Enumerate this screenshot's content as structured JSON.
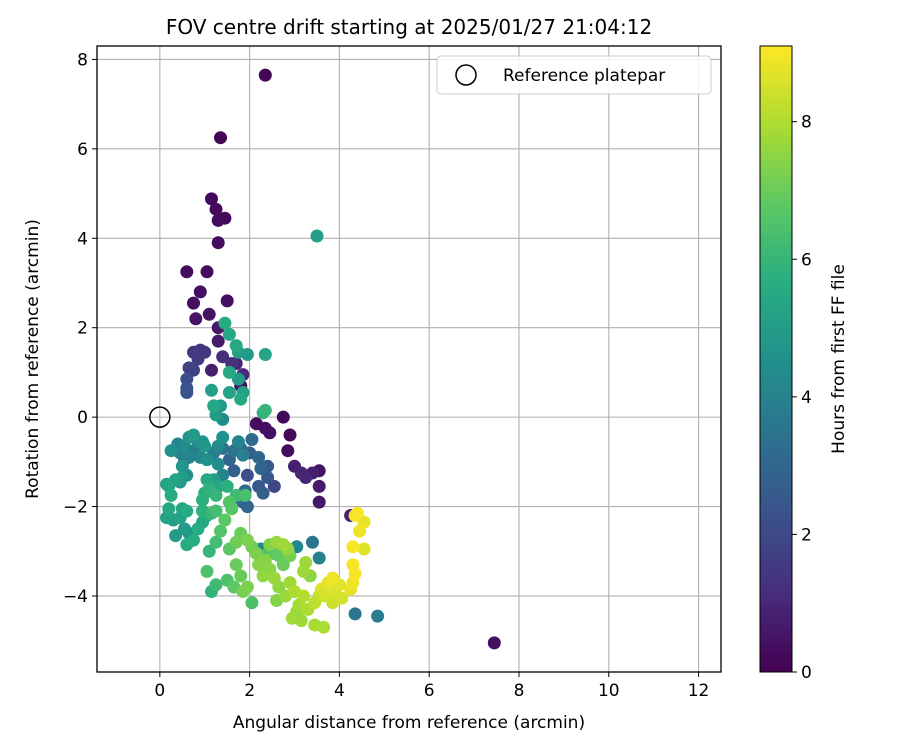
{
  "chart_data": {
    "type": "scatter",
    "title": "FOV centre drift starting at 2025/01/27 21:04:12",
    "xlabel": "Angular distance from reference (arcmin)",
    "ylabel": "Rotation from reference (arcmin)",
    "xlim": [
      -1.4,
      12.5
    ],
    "ylim": [
      -5.7,
      8.3
    ],
    "xticks": [
      0,
      2,
      4,
      6,
      8,
      10,
      12
    ],
    "yticks": [
      -4,
      -2,
      0,
      2,
      4,
      6,
      8
    ],
    "grid": true,
    "legend": {
      "position": "top-right",
      "entries": [
        "Reference platepar"
      ]
    },
    "reference_point": {
      "x": 0,
      "y": 0
    },
    "colorbar": {
      "label": "Hours from first FF file",
      "range": [
        0,
        9.1
      ],
      "ticks": [
        0,
        2,
        4,
        6,
        8
      ],
      "colormap": "viridis"
    },
    "points_columns": [
      "x",
      "y",
      "hours"
    ],
    "points": [
      [
        2.35,
        7.65,
        0.1
      ],
      [
        1.35,
        6.25,
        0.1
      ],
      [
        1.15,
        4.88,
        0.2
      ],
      [
        1.25,
        4.65,
        0.2
      ],
      [
        1.45,
        4.45,
        0.2
      ],
      [
        1.3,
        4.4,
        0.3
      ],
      [
        1.3,
        3.9,
        0.3
      ],
      [
        0.6,
        3.25,
        0.3
      ],
      [
        1.05,
        3.25,
        0.3
      ],
      [
        0.9,
        2.8,
        0.4
      ],
      [
        0.75,
        2.55,
        0.4
      ],
      [
        1.5,
        2.6,
        0.4
      ],
      [
        1.1,
        2.3,
        0.5
      ],
      [
        0.8,
        2.2,
        0.5
      ],
      [
        1.3,
        2.0,
        0.6
      ],
      [
        1.3,
        1.7,
        0.7
      ],
      [
        0.75,
        1.45,
        1.4
      ],
      [
        0.9,
        1.5,
        1.5
      ],
      [
        1.0,
        1.45,
        1.5
      ],
      [
        0.85,
        1.3,
        1.6
      ],
      [
        0.65,
        1.1,
        1.8
      ],
      [
        0.75,
        1.05,
        1.8
      ],
      [
        0.6,
        0.85,
        2.2
      ],
      [
        0.6,
        0.65,
        2.3
      ],
      [
        0.6,
        0.55,
        2.4
      ],
      [
        1.15,
        1.05,
        0.8
      ],
      [
        1.4,
        1.35,
        1.2
      ],
      [
        1.6,
        1.2,
        1.3
      ],
      [
        1.8,
        0.7,
        0.4
      ],
      [
        1.7,
        1.2,
        1.0
      ],
      [
        1.85,
        0.95,
        1.1
      ],
      [
        1.75,
        1.45,
        5.1
      ],
      [
        2.35,
        1.4,
        5.3
      ],
      [
        1.95,
        1.4,
        5.0
      ],
      [
        1.55,
        1.85,
        5.4
      ],
      [
        1.45,
        2.1,
        5.6
      ],
      [
        1.7,
        1.6,
        5.5
      ],
      [
        1.55,
        1.0,
        5.5
      ],
      [
        1.75,
        0.85,
        5.0
      ],
      [
        1.55,
        0.55,
        5.3
      ],
      [
        1.8,
        0.4,
        5.5
      ],
      [
        1.85,
        0.55,
        5.2
      ],
      [
        1.15,
        0.6,
        5.2
      ],
      [
        1.2,
        0.25,
        5.4
      ],
      [
        1.35,
        0.25,
        5.0
      ],
      [
        1.25,
        0.05,
        5.0
      ],
      [
        1.4,
        -0.05,
        4.4
      ],
      [
        3.5,
        4.05,
        5.1
      ],
      [
        2.35,
        0.15,
        6.0
      ],
      [
        2.3,
        0.1,
        5.8
      ],
      [
        2.15,
        -0.15,
        0.3
      ],
      [
        2.35,
        -0.25,
        0.4
      ],
      [
        2.45,
        -0.35,
        0.4
      ],
      [
        2.75,
        0.0,
        0.2
      ],
      [
        2.9,
        -0.4,
        0.2
      ],
      [
        2.85,
        -0.75,
        0.3
      ],
      [
        2.05,
        -0.5,
        3.2
      ],
      [
        3.0,
        -1.1,
        0.8
      ],
      [
        3.15,
        -1.25,
        1.0
      ],
      [
        3.25,
        -1.35,
        1.0
      ],
      [
        3.4,
        -1.25,
        0.8
      ],
      [
        3.55,
        -1.2,
        0.5
      ],
      [
        3.55,
        -1.55,
        0.7
      ],
      [
        3.55,
        -1.9,
        0.6
      ],
      [
        4.25,
        -2.2,
        0.9
      ],
      [
        2.0,
        -0.8,
        2.8
      ],
      [
        2.2,
        -0.9,
        3.0
      ],
      [
        2.25,
        -1.15,
        3.0
      ],
      [
        2.4,
        -1.1,
        2.6
      ],
      [
        2.4,
        -1.35,
        2.5
      ],
      [
        2.3,
        -1.7,
        2.8
      ],
      [
        2.55,
        -1.55,
        1.9
      ],
      [
        2.2,
        -1.55,
        2.6
      ],
      [
        1.95,
        -1.3,
        2.2
      ],
      [
        1.9,
        -1.65,
        3.2
      ],
      [
        1.85,
        -1.9,
        3.0
      ],
      [
        1.95,
        -2.0,
        3.0
      ],
      [
        1.75,
        -1.8,
        3.5
      ],
      [
        1.65,
        -1.2,
        2.8
      ],
      [
        1.55,
        -0.95,
        3.0
      ],
      [
        1.65,
        -0.75,
        3.5
      ],
      [
        1.8,
        -0.7,
        3.2
      ],
      [
        1.4,
        -0.7,
        3.4
      ],
      [
        1.2,
        -0.8,
        3.8
      ],
      [
        1.3,
        -1.05,
        4.4
      ],
      [
        1.4,
        -1.3,
        4.2
      ],
      [
        1.05,
        -0.95,
        4.6
      ],
      [
        0.9,
        -0.9,
        4.2
      ],
      [
        0.85,
        -0.55,
        4.5
      ],
      [
        0.95,
        -0.55,
        4.6
      ],
      [
        1.0,
        -0.65,
        4.8
      ],
      [
        0.75,
        -0.75,
        3.8
      ],
      [
        0.65,
        -0.9,
        4.1
      ],
      [
        0.55,
        -0.95,
        3.9
      ],
      [
        0.45,
        -0.8,
        4.0
      ],
      [
        0.55,
        -0.65,
        4.4
      ],
      [
        0.4,
        -0.6,
        4.1
      ],
      [
        0.25,
        -0.75,
        4.6
      ],
      [
        0.65,
        -0.45,
        4.7
      ],
      [
        0.75,
        -0.4,
        5.0
      ],
      [
        0.5,
        -1.1,
        4.8
      ],
      [
        0.6,
        -1.3,
        4.6
      ],
      [
        0.5,
        -1.35,
        5.0
      ],
      [
        0.45,
        -1.45,
        4.8
      ],
      [
        0.35,
        -1.4,
        5.2
      ],
      [
        0.2,
        -1.55,
        5.4
      ],
      [
        0.15,
        -1.5,
        5.2
      ],
      [
        0.25,
        -1.75,
        5.6
      ],
      [
        0.2,
        -2.05,
        5.5
      ],
      [
        0.15,
        -2.25,
        5.3
      ],
      [
        0.3,
        -2.3,
        5.0
      ],
      [
        0.45,
        -2.25,
        5.2
      ],
      [
        0.5,
        -2.05,
        5.4
      ],
      [
        0.6,
        -2.1,
        5.6
      ],
      [
        0.55,
        -2.5,
        5.0
      ],
      [
        0.65,
        -2.6,
        4.8
      ],
      [
        0.35,
        -2.65,
        5.0
      ],
      [
        0.6,
        -2.85,
        5.6
      ],
      [
        0.75,
        -2.75,
        5.7
      ],
      [
        0.85,
        -2.5,
        5.6
      ],
      [
        0.95,
        -2.35,
        5.5
      ],
      [
        1.05,
        -2.2,
        5.6
      ],
      [
        0.95,
        -2.1,
        5.8
      ],
      [
        1.15,
        -2.15,
        6.1
      ],
      [
        1.25,
        -2.1,
        6.3
      ],
      [
        0.95,
        -1.85,
        5.8
      ],
      [
        1.0,
        -1.7,
        5.7
      ],
      [
        1.1,
        -1.6,
        5.9
      ],
      [
        1.25,
        -1.75,
        6.0
      ],
      [
        1.3,
        -1.55,
        5.4
      ],
      [
        1.2,
        -1.4,
        5.1
      ],
      [
        1.05,
        -1.4,
        5.5
      ],
      [
        1.5,
        -1.55,
        5.8
      ],
      [
        1.7,
        -1.75,
        6.2
      ],
      [
        1.9,
        -1.75,
        6.4
      ],
      [
        1.55,
        -1.9,
        6.6
      ],
      [
        1.6,
        -2.05,
        6.7
      ],
      [
        1.45,
        -2.3,
        6.8
      ],
      [
        1.35,
        -2.55,
        6.6
      ],
      [
        1.25,
        -2.8,
        6.3
      ],
      [
        1.1,
        -3.0,
        6.0
      ],
      [
        1.05,
        -3.45,
        6.5
      ],
      [
        1.15,
        -3.9,
        5.9
      ],
      [
        1.25,
        -3.75,
        6.2
      ],
      [
        1.5,
        -3.65,
        6.5
      ],
      [
        1.65,
        -3.8,
        6.8
      ],
      [
        1.85,
        -3.9,
        7.2
      ],
      [
        1.95,
        -3.8,
        7.3
      ],
      [
        2.05,
        -4.15,
        6.5
      ],
      [
        1.8,
        -3.55,
        7.0
      ],
      [
        1.7,
        -3.3,
        7.0
      ],
      [
        1.55,
        -2.95,
        6.8
      ],
      [
        1.7,
        -2.8,
        7.1
      ],
      [
        1.8,
        -2.6,
        7.0
      ],
      [
        1.95,
        -2.75,
        7.3
      ],
      [
        2.05,
        -2.9,
        7.1
      ],
      [
        2.15,
        -3.05,
        7.3
      ],
      [
        2.2,
        -3.3,
        7.5
      ],
      [
        2.35,
        -3.2,
        7.4
      ],
      [
        2.3,
        -3.55,
        7.6
      ],
      [
        2.45,
        -3.4,
        7.5
      ],
      [
        2.55,
        -3.6,
        7.7
      ],
      [
        2.65,
        -3.8,
        7.6
      ],
      [
        2.6,
        -4.1,
        7.4
      ],
      [
        2.8,
        -4.0,
        7.7
      ],
      [
        2.9,
        -3.7,
        7.8
      ],
      [
        3.0,
        -3.9,
        8.0
      ],
      [
        3.1,
        -4.2,
        7.9
      ],
      [
        3.2,
        -4.0,
        8.1
      ],
      [
        3.05,
        -4.35,
        7.7
      ],
      [
        2.95,
        -4.5,
        7.8
      ],
      [
        3.15,
        -4.55,
        7.8
      ],
      [
        3.3,
        -4.3,
        8.0
      ],
      [
        3.45,
        -4.15,
        8.2
      ],
      [
        3.55,
        -4.0,
        8.3
      ],
      [
        3.45,
        -4.65,
        7.9
      ],
      [
        3.65,
        -4.7,
        8.0
      ],
      [
        3.6,
        -3.85,
        8.6
      ],
      [
        3.75,
        -3.7,
        8.8
      ],
      [
        3.85,
        -3.6,
        8.9
      ],
      [
        3.7,
        -4.0,
        8.5
      ],
      [
        3.9,
        -3.9,
        8.6
      ],
      [
        4.0,
        -3.75,
        8.7
      ],
      [
        3.85,
        -4.15,
        8.4
      ],
      [
        4.05,
        -4.05,
        8.5
      ],
      [
        4.25,
        -3.85,
        8.8
      ],
      [
        4.3,
        -3.7,
        8.9
      ],
      [
        4.35,
        -3.5,
        9.0
      ],
      [
        4.3,
        -3.3,
        9.0
      ],
      [
        4.3,
        -2.9,
        9.0
      ],
      [
        4.45,
        -2.55,
        8.9
      ],
      [
        4.55,
        -2.35,
        8.8
      ],
      [
        4.35,
        -2.2,
        9.0
      ],
      [
        4.4,
        -2.15,
        9.0
      ],
      [
        4.55,
        -2.95,
        8.7
      ],
      [
        2.45,
        -2.85,
        7.4
      ],
      [
        2.6,
        -2.8,
        7.7
      ],
      [
        2.75,
        -2.85,
        7.8
      ],
      [
        2.85,
        -2.95,
        7.6
      ],
      [
        2.9,
        -3.1,
        7.2
      ],
      [
        2.75,
        -3.3,
        7.0
      ],
      [
        2.65,
        -3.1,
        6.9
      ],
      [
        2.55,
        -3.05,
        6.7
      ],
      [
        2.4,
        -3.05,
        6.5
      ],
      [
        2.25,
        -2.95,
        4.3
      ],
      [
        2.6,
        -2.95,
        3.6
      ],
      [
        2.75,
        -2.9,
        3.4
      ],
      [
        3.05,
        -2.9,
        4.2
      ],
      [
        3.25,
        -3.25,
        7.8
      ],
      [
        3.4,
        -2.8,
        3.6
      ],
      [
        3.55,
        -3.15,
        4.0
      ],
      [
        3.2,
        -3.45,
        7.8
      ],
      [
        3.35,
        -3.55,
        7.5
      ],
      [
        4.35,
        -4.4,
        3.6
      ],
      [
        4.85,
        -4.45,
        3.8
      ],
      [
        7.45,
        -5.05,
        0.4
      ],
      [
        1.75,
        -0.55,
        4.2
      ],
      [
        1.85,
        -0.85,
        4.0
      ],
      [
        1.4,
        -0.45,
        4.6
      ],
      [
        1.3,
        -0.65,
        4.3
      ]
    ]
  }
}
